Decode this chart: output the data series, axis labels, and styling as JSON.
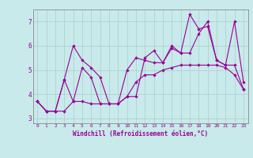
{
  "xlabel": "Windchill (Refroidissement éolien,°C)",
  "bg_color": "#c8eaea",
  "line_color": "#990099",
  "grid_color": "#aacccc",
  "spine_color": "#888888",
  "xlim": [
    -0.5,
    23.5
  ],
  "ylim": [
    2.8,
    7.5
  ],
  "xticks": [
    0,
    1,
    2,
    3,
    4,
    5,
    6,
    7,
    8,
    9,
    10,
    11,
    12,
    13,
    14,
    15,
    16,
    17,
    18,
    19,
    20,
    21,
    22,
    23
  ],
  "yticks": [
    3,
    4,
    5,
    6,
    7
  ],
  "series1_x": [
    0,
    1,
    2,
    3,
    4,
    5,
    6,
    7,
    8,
    9,
    10,
    11,
    12,
    13,
    14,
    15,
    16,
    17,
    18,
    19,
    20,
    21,
    22,
    23
  ],
  "series1_y": [
    3.7,
    3.3,
    3.3,
    3.3,
    3.7,
    3.7,
    3.6,
    3.6,
    3.6,
    3.6,
    3.9,
    4.5,
    4.8,
    4.8,
    5.0,
    5.1,
    5.2,
    5.2,
    5.2,
    5.2,
    5.2,
    5.1,
    4.8,
    4.2
  ],
  "series2_x": [
    0,
    1,
    2,
    3,
    4,
    5,
    6,
    7,
    8,
    9,
    10,
    11,
    12,
    13,
    14,
    15,
    16,
    17,
    18,
    19,
    20,
    21,
    22,
    23
  ],
  "series2_y": [
    3.7,
    3.3,
    3.3,
    4.6,
    6.0,
    5.4,
    5.1,
    4.7,
    3.6,
    3.6,
    5.0,
    5.5,
    5.4,
    5.3,
    5.3,
    5.9,
    5.7,
    7.3,
    6.7,
    6.8,
    5.4,
    5.2,
    5.2,
    4.2
  ],
  "series3_x": [
    0,
    1,
    2,
    3,
    4,
    5,
    6,
    7,
    8,
    9,
    10,
    11,
    12,
    13,
    14,
    15,
    16,
    17,
    18,
    19,
    20,
    21,
    22,
    23
  ],
  "series3_y": [
    3.7,
    3.3,
    3.3,
    4.6,
    3.7,
    5.1,
    4.7,
    3.6,
    3.6,
    3.6,
    3.9,
    3.9,
    5.5,
    5.8,
    5.3,
    6.0,
    5.7,
    5.7,
    6.5,
    7.0,
    5.4,
    5.2,
    7.0,
    4.5
  ]
}
